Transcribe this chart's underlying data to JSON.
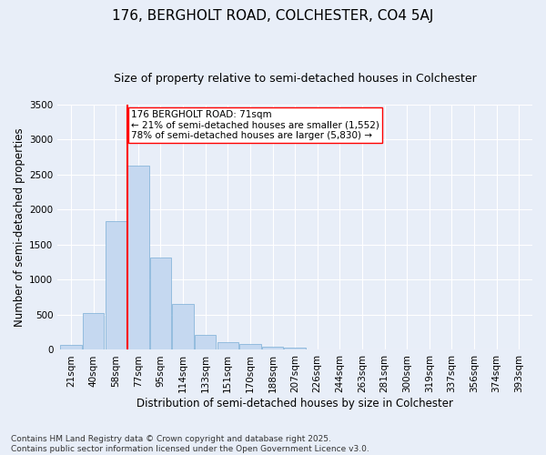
{
  "title": "176, BERGHOLT ROAD, COLCHESTER, CO4 5AJ",
  "subtitle": "Size of property relative to semi-detached houses in Colchester",
  "xlabel": "Distribution of semi-detached houses by size in Colchester",
  "ylabel": "Number of semi-detached properties",
  "categories": [
    "21sqm",
    "40sqm",
    "58sqm",
    "77sqm",
    "95sqm",
    "114sqm",
    "133sqm",
    "151sqm",
    "170sqm",
    "188sqm",
    "207sqm",
    "226sqm",
    "244sqm",
    "263sqm",
    "281sqm",
    "300sqm",
    "319sqm",
    "337sqm",
    "356sqm",
    "374sqm",
    "393sqm"
  ],
  "values": [
    70,
    530,
    1840,
    2630,
    1320,
    650,
    210,
    110,
    80,
    50,
    30,
    10,
    5,
    2,
    1,
    0,
    0,
    0,
    0,
    0,
    0
  ],
  "bar_color": "#c5d8f0",
  "bar_edge_color": "#7aaed6",
  "annotation_text": "176 BERGHOLT ROAD: 71sqm\n← 21% of semi-detached houses are smaller (1,552)\n78% of semi-detached houses are larger (5,830) →",
  "ylim": [
    0,
    3500
  ],
  "yticks": [
    0,
    500,
    1000,
    1500,
    2000,
    2500,
    3000,
    3500
  ],
  "footnote": "Contains HM Land Registry data © Crown copyright and database right 2025.\nContains public sector information licensed under the Open Government Licence v3.0.",
  "background_color": "#e8eef8",
  "grid_color": "#ffffff",
  "title_fontsize": 11,
  "subtitle_fontsize": 9,
  "axis_label_fontsize": 8.5,
  "tick_fontsize": 7.5,
  "annotation_fontsize": 7.5,
  "footnote_fontsize": 6.5
}
